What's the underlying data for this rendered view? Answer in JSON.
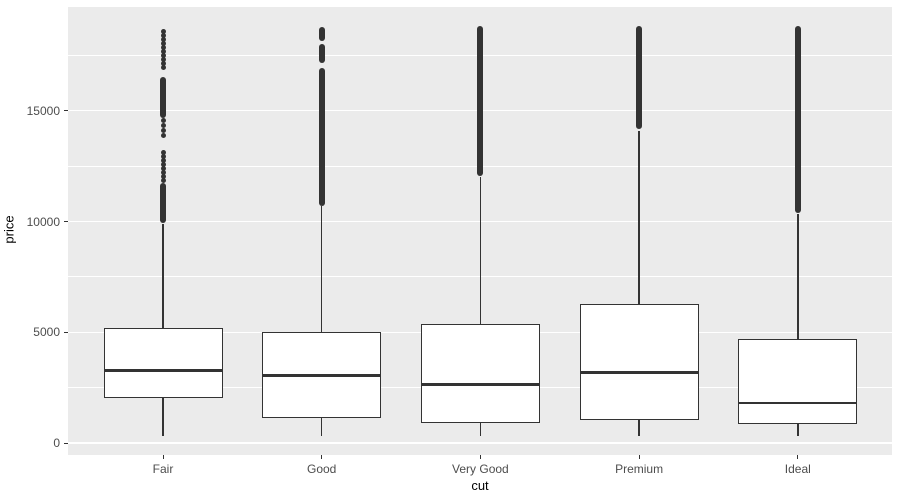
{
  "chart_data": {
    "type": "boxplot",
    "title": "",
    "xlabel": "cut",
    "ylabel": "price",
    "categories": [
      "Fair",
      "Good",
      "Very Good",
      "Premium",
      "Ideal"
    ],
    "y_ticks": [
      0,
      5000,
      10000,
      15000
    ],
    "y_minor_gridlines": [
      2500,
      7500,
      12500,
      17500
    ],
    "ylim": [
      -600,
      19750
    ],
    "legend": "none",
    "grid": "on",
    "series": [
      {
        "category": "Fair",
        "whisker_low": 337,
        "q1": 2050,
        "median": 3282,
        "q3": 5206,
        "whisker_high": 9900,
        "outlier_segments": [
          [
            14670,
            16520
          ],
          [
            9930,
            11730
          ]
        ],
        "outlier_dots": [
          18565,
          18370,
          18190,
          18010,
          17830,
          17650,
          17470,
          17290,
          17110,
          16930,
          14540,
          14310,
          14090,
          13860,
          13130,
          12950,
          12770,
          12590,
          12410,
          12230,
          12050,
          11870
        ]
      },
      {
        "category": "Good",
        "whisker_low": 327,
        "q1": 1145,
        "median": 3050,
        "q3": 5028,
        "whisker_high": 10700,
        "outlier_segments": [
          [
            18150,
            18790
          ],
          [
            17160,
            18020
          ],
          [
            10720,
            16940
          ]
        ],
        "outlier_dots": []
      },
      {
        "category": "Very Good",
        "whisker_low": 336,
        "q1": 912,
        "median": 2648,
        "q3": 5373,
        "whisker_high": 12000,
        "outlier_segments": [
          [
            12060,
            18820
          ]
        ],
        "outlier_dots": []
      },
      {
        "category": "Premium",
        "whisker_low": 326,
        "q1": 1046,
        "median": 3185,
        "q3": 6296,
        "whisker_high": 14100,
        "outlier_segments": [
          [
            14170,
            18820
          ]
        ],
        "outlier_dots": []
      },
      {
        "category": "Ideal",
        "whisker_low": 326,
        "q1": 878,
        "median": 1810,
        "q3": 4679,
        "whisker_high": 10350,
        "outlier_segments": [
          [
            10380,
            18810
          ]
        ],
        "outlier_dots": []
      }
    ],
    "colors": {
      "panel_bg": "#EBEBEB",
      "gridline": "#FFFFFF",
      "box_border": "#333333",
      "box_fill": "#FFFFFF",
      "outlier": "#333333",
      "tick_text": "#4D4D4D",
      "axis_title_text": "#000000"
    }
  }
}
